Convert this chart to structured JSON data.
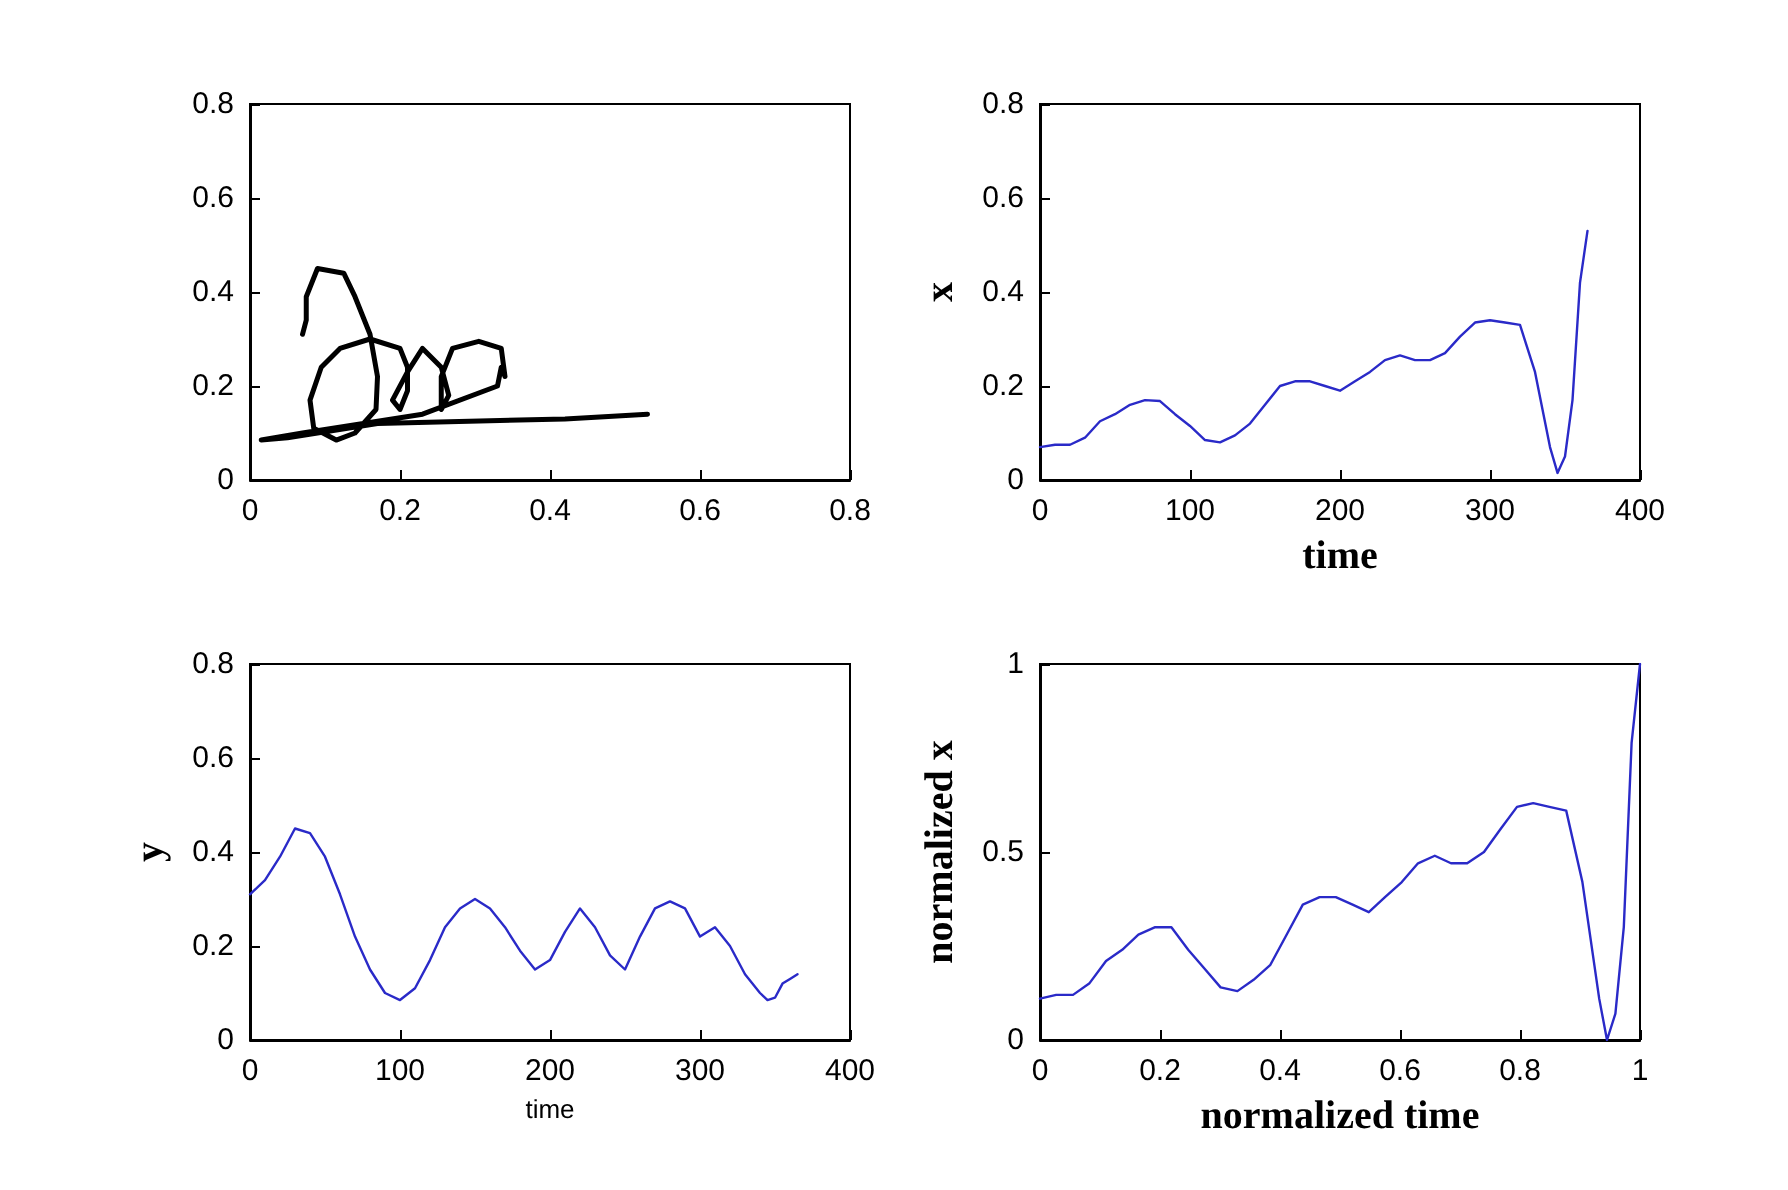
{
  "chart_data": [
    {
      "type": "line",
      "x": [
        0.07,
        0.075,
        0.075,
        0.09,
        0.125,
        0.14,
        0.16,
        0.17,
        0.168,
        0.14,
        0.115,
        0.085,
        0.08,
        0.095,
        0.12,
        0.16,
        0.2,
        0.21,
        0.21,
        0.2,
        0.19,
        0.21,
        0.23,
        0.255,
        0.265,
        0.255,
        0.255,
        0.27,
        0.305,
        0.335,
        0.34,
        0.335,
        0.33,
        0.23,
        0.07,
        0.015,
        0.05,
        0.17,
        0.42,
        0.53
      ],
      "series": [
        {
          "color": "#000000",
          "values": [
            0.31,
            0.34,
            0.39,
            0.45,
            0.44,
            0.39,
            0.31,
            0.22,
            0.15,
            0.1,
            0.085,
            0.11,
            0.17,
            0.24,
            0.28,
            0.3,
            0.28,
            0.24,
            0.19,
            0.15,
            0.17,
            0.23,
            0.28,
            0.24,
            0.18,
            0.15,
            0.22,
            0.28,
            0.295,
            0.28,
            0.22,
            0.24,
            0.2,
            0.14,
            0.1,
            0.085,
            0.09,
            0.12,
            0.13,
            0.14
          ]
        }
      ],
      "xlim": [
        0,
        0.8
      ],
      "ylim": [
        0,
        0.8
      ],
      "xticks": [
        0,
        0.2,
        0.4,
        0.6,
        0.8
      ],
      "yticks": [
        0,
        0.2,
        0.4,
        0.6,
        0.8
      ],
      "grid": false
    },
    {
      "type": "line",
      "xlabel": "time",
      "ylabel": "x",
      "x": [
        0,
        10,
        20,
        30,
        40,
        50,
        60,
        70,
        80,
        90,
        100,
        110,
        120,
        130,
        140,
        150,
        160,
        170,
        180,
        190,
        200,
        210,
        220,
        230,
        240,
        250,
        260,
        270,
        280,
        290,
        300,
        310,
        320,
        330,
        340,
        345,
        350,
        355,
        360,
        365
      ],
      "series": [
        {
          "color": "#2a2ac8",
          "values": [
            0.07,
            0.075,
            0.075,
            0.09,
            0.125,
            0.14,
            0.16,
            0.17,
            0.168,
            0.14,
            0.115,
            0.085,
            0.08,
            0.095,
            0.12,
            0.16,
            0.2,
            0.21,
            0.21,
            0.2,
            0.19,
            0.21,
            0.23,
            0.255,
            0.265,
            0.255,
            0.255,
            0.27,
            0.305,
            0.335,
            0.34,
            0.335,
            0.33,
            0.23,
            0.07,
            0.015,
            0.05,
            0.17,
            0.42,
            0.53
          ]
        }
      ],
      "xlim": [
        0,
        400
      ],
      "ylim": [
        0,
        0.8
      ],
      "xticks": [
        0,
        100,
        200,
        300,
        400
      ],
      "yticks": [
        0,
        0.2,
        0.4,
        0.6,
        0.8
      ],
      "grid": false
    },
    {
      "type": "line",
      "xlabel": "time",
      "ylabel": "y",
      "x": [
        0,
        10,
        20,
        30,
        40,
        50,
        60,
        70,
        80,
        90,
        100,
        110,
        120,
        130,
        140,
        150,
        160,
        170,
        180,
        190,
        200,
        210,
        220,
        230,
        240,
        250,
        260,
        270,
        280,
        290,
        300,
        310,
        320,
        330,
        340,
        345,
        350,
        355,
        360,
        365
      ],
      "series": [
        {
          "color": "#2a2ac8",
          "values": [
            0.31,
            0.34,
            0.39,
            0.45,
            0.44,
            0.39,
            0.31,
            0.22,
            0.15,
            0.1,
            0.085,
            0.11,
            0.17,
            0.24,
            0.28,
            0.3,
            0.28,
            0.24,
            0.19,
            0.15,
            0.17,
            0.23,
            0.28,
            0.24,
            0.18,
            0.15,
            0.22,
            0.28,
            0.295,
            0.28,
            0.22,
            0.24,
            0.2,
            0.14,
            0.1,
            0.085,
            0.09,
            0.12,
            0.13,
            0.14
          ]
        }
      ],
      "xlim": [
        0,
        400
      ],
      "ylim": [
        0,
        0.8
      ],
      "xticks": [
        0,
        100,
        200,
        300,
        400
      ],
      "yticks": [
        0,
        0.2,
        0.4,
        0.6,
        0.8
      ],
      "grid": false
    },
    {
      "type": "line",
      "xlabel": "normalized time",
      "ylabel": "normalized x",
      "x": [
        0,
        0.027,
        0.055,
        0.082,
        0.11,
        0.137,
        0.164,
        0.192,
        0.219,
        0.247,
        0.274,
        0.301,
        0.329,
        0.356,
        0.384,
        0.411,
        0.438,
        0.466,
        0.493,
        0.521,
        0.548,
        0.575,
        0.603,
        0.63,
        0.658,
        0.685,
        0.712,
        0.74,
        0.767,
        0.795,
        0.822,
        0.849,
        0.877,
        0.904,
        0.932,
        0.945,
        0.959,
        0.973,
        0.986,
        1
      ],
      "series": [
        {
          "color": "#2a2ac8",
          "values": [
            0.11,
            0.12,
            0.12,
            0.15,
            0.21,
            0.24,
            0.28,
            0.3,
            0.3,
            0.24,
            0.19,
            0.14,
            0.13,
            0.16,
            0.2,
            0.28,
            0.36,
            0.38,
            0.38,
            0.36,
            0.34,
            0.38,
            0.42,
            0.47,
            0.49,
            0.47,
            0.47,
            0.5,
            0.56,
            0.62,
            0.63,
            0.62,
            0.61,
            0.42,
            0.11,
            0,
            0.07,
            0.3,
            0.79,
            1
          ]
        }
      ],
      "xlim": [
        0,
        1
      ],
      "ylim": [
        0,
        1
      ],
      "xticks": [
        0,
        0.2,
        0.4,
        0.6,
        0.8,
        1
      ],
      "yticks": [
        0,
        0.5,
        1
      ],
      "grid": false
    }
  ]
}
